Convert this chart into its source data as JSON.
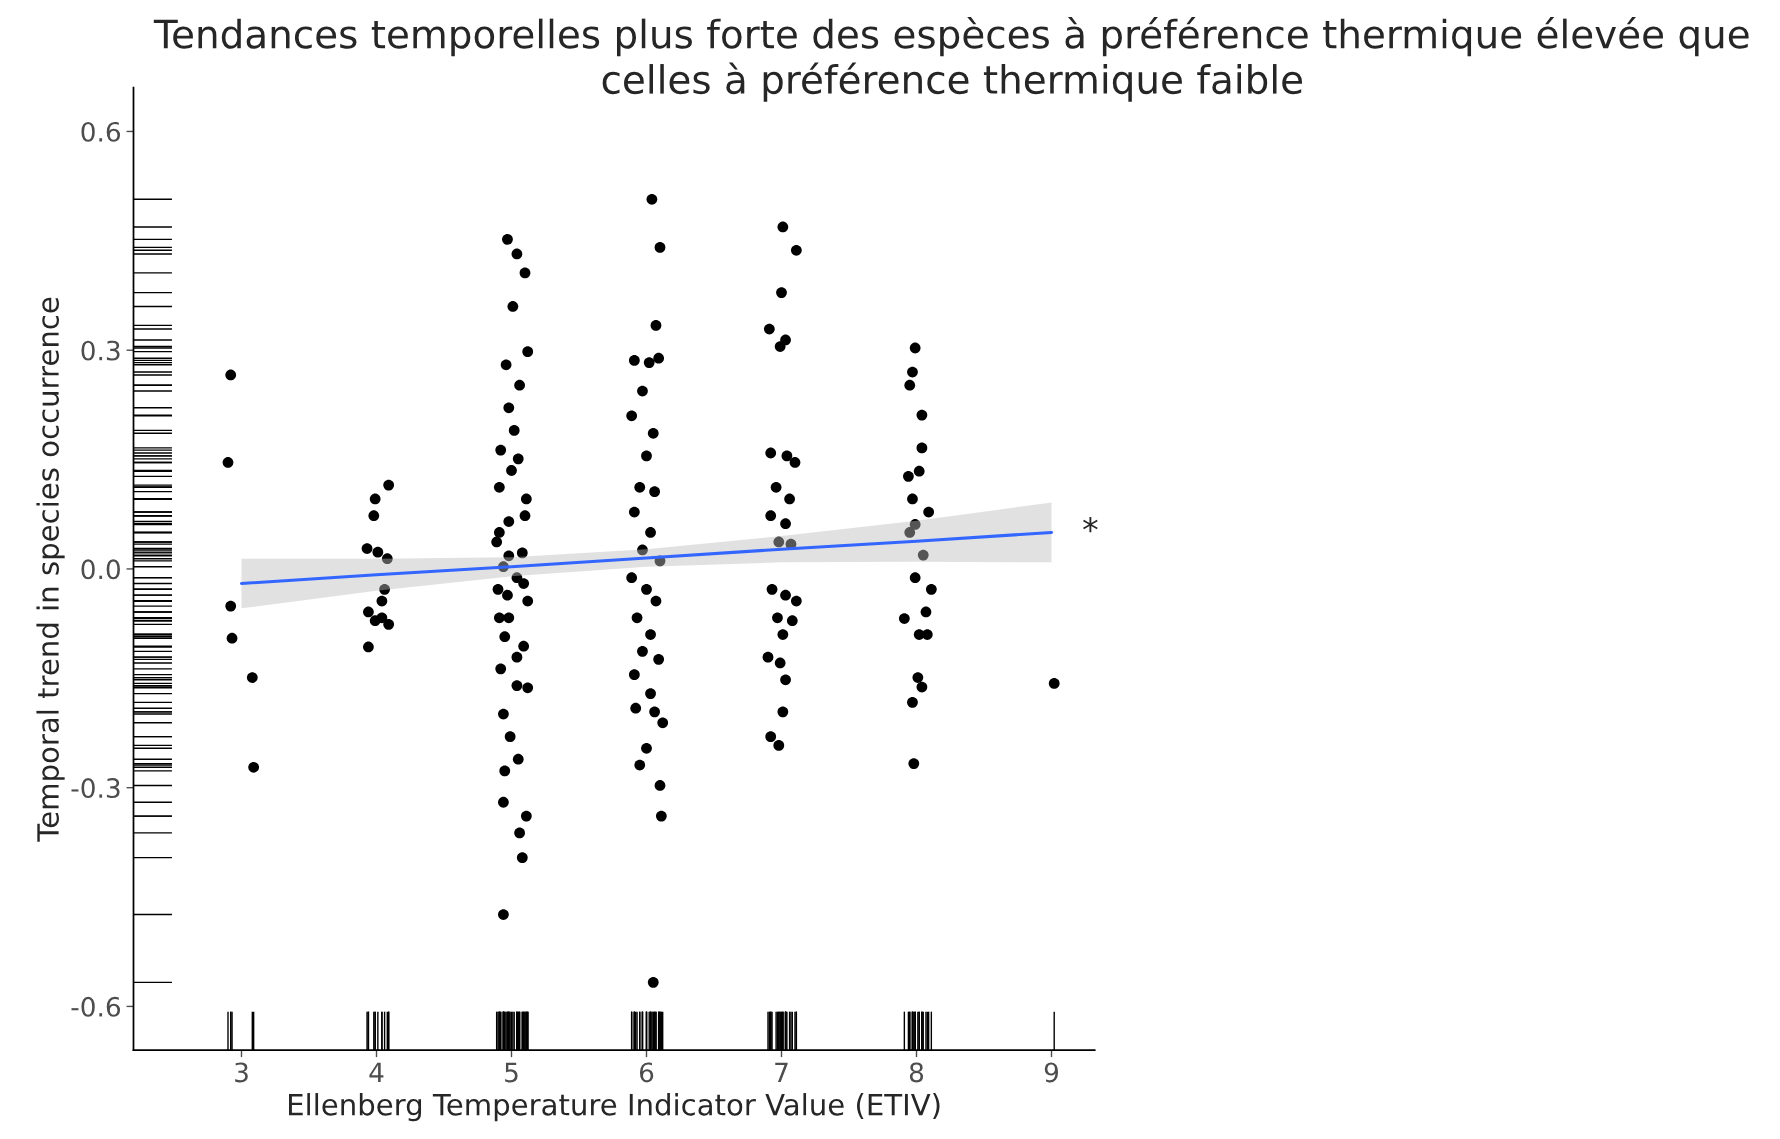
{
  "chart_data": {
    "type": "scatter",
    "title": "Tendances temporelles plus forte des espèces à préférence thermique élevée que celles à préférence thermique faible",
    "xlabel": "Ellenberg Temperature Indicator Value (ETIV)",
    "ylabel": "Temporal trend in species occurrence",
    "xlim": [
      2.2,
      9.32
    ],
    "ylim": [
      -0.66,
      0.66
    ],
    "xticks": [
      3,
      4,
      5,
      6,
      7,
      8,
      9
    ],
    "yticks": [
      -0.6,
      -0.3,
      {
        "value": 0,
        "label": "0.0"
      },
      0.3,
      0.6
    ],
    "grid": false,
    "annotations": [
      "*"
    ],
    "series": [
      {
        "color": "#000000",
        "marker": "circle",
        "x": [
          2.92,
          2.9,
          2.92,
          2.93,
          3.08,
          3.09,
          3.99,
          4.09,
          3.98,
          3.93,
          4.01,
          4.08,
          4.04,
          3.94,
          3.99,
          4.09,
          3.94,
          4.04,
          4.06,
          4.97,
          5.04,
          5.1,
          5.01,
          5.12,
          4.96,
          5.06,
          4.98,
          5.02,
          4.92,
          5.05,
          4.91,
          5.11,
          4.98,
          4.89,
          5.08,
          4.94,
          5.04,
          4.9,
          5.12,
          4.98,
          4.95,
          5.09,
          4.92,
          5.04,
          5.12,
          4.94,
          4.99,
          5.05,
          4.95,
          4.94,
          5.11,
          5.06,
          5.08,
          4.94,
          5.0,
          4.91,
          5.1,
          4.97,
          5.04,
          4.91,
          5.09,
          4.98,
          6.04,
          6.1,
          6.07,
          5.91,
          6.02,
          6.09,
          5.97,
          5.89,
          6.05,
          6.0,
          5.95,
          6.06,
          5.91,
          6.03,
          5.97,
          6.1,
          5.89,
          6.0,
          6.07,
          5.93,
          6.03,
          5.97,
          6.09,
          5.91,
          6.03,
          5.92,
          6.06,
          6.12,
          6.0,
          5.95,
          6.1,
          6.11,
          6.05,
          7.01,
          7.11,
          7.0,
          6.91,
          7.03,
          6.99,
          6.92,
          7.04,
          7.1,
          6.96,
          7.06,
          6.92,
          7.03,
          6.98,
          7.07,
          6.93,
          7.03,
          7.11,
          6.97,
          7.08,
          7.01,
          6.9,
          6.99,
          7.03,
          7.01,
          6.92,
          6.98,
          7.99,
          7.97,
          7.95,
          8.04,
          8.04,
          7.94,
          8.02,
          7.97,
          8.09,
          7.99,
          7.95,
          8.05,
          7.99,
          8.11,
          8.07,
          7.91,
          8.02,
          8.08,
          8.01,
          8.04,
          7.97,
          7.98,
          9.02
        ],
        "values": [
          0.266,
          0.146,
          -0.051,
          -0.095,
          -0.149,
          -0.272,
          0.096,
          0.115,
          0.073,
          0.028,
          0.023,
          0.014,
          -0.044,
          -0.059,
          -0.071,
          -0.076,
          -0.107,
          -0.067,
          -0.028,
          0.452,
          0.432,
          0.406,
          0.36,
          0.298,
          0.28,
          0.252,
          0.221,
          0.19,
          0.163,
          0.151,
          0.112,
          0.096,
          0.065,
          0.037,
          0.022,
          0.003,
          -0.012,
          -0.028,
          -0.044,
          -0.067,
          -0.093,
          -0.106,
          -0.137,
          -0.16,
          -0.163,
          -0.199,
          -0.23,
          -0.261,
          -0.277,
          -0.32,
          -0.339,
          -0.362,
          -0.396,
          -0.474,
          0.135,
          0.05,
          0.073,
          -0.036,
          -0.121,
          -0.067,
          -0.02,
          0.018,
          0.507,
          0.441,
          0.334,
          0.286,
          0.283,
          0.289,
          0.244,
          0.21,
          0.186,
          0.155,
          0.112,
          0.106,
          0.078,
          0.05,
          0.026,
          0.011,
          -0.012,
          -0.028,
          -0.044,
          -0.067,
          -0.09,
          -0.113,
          -0.124,
          -0.145,
          -0.171,
          -0.191,
          -0.196,
          -0.211,
          -0.246,
          -0.269,
          -0.297,
          -0.339,
          -0.567,
          0.469,
          0.437,
          0.379,
          0.329,
          0.314,
          0.305,
          0.159,
          0.155,
          0.146,
          0.112,
          0.096,
          0.073,
          0.062,
          0.037,
          0.034,
          -0.028,
          -0.036,
          -0.044,
          -0.067,
          -0.071,
          -0.09,
          -0.121,
          -0.129,
          -0.152,
          -0.196,
          -0.23,
          -0.242,
          0.303,
          0.27,
          0.252,
          0.211,
          0.166,
          0.127,
          0.134,
          0.096,
          0.078,
          0.061,
          0.05,
          0.019,
          -0.012,
          -0.028,
          -0.059,
          -0.068,
          -0.09,
          -0.09,
          -0.149,
          -0.162,
          -0.183,
          -0.267,
          -0.157
        ]
      },
      {
        "type": "line",
        "color": "#3366ff",
        "x": [
          3,
          4,
          5,
          6,
          7,
          8,
          9
        ],
        "values": [
          -0.02,
          -0.008,
          0.003,
          0.015,
          0.027,
          0.038,
          0.05
        ],
        "lower": [
          -0.054,
          -0.03,
          -0.01,
          0.003,
          0.009,
          0.01,
          0.009
        ],
        "upper": [
          0.014,
          0.014,
          0.016,
          0.027,
          0.045,
          0.066,
          0.091
        ]
      }
    ]
  }
}
